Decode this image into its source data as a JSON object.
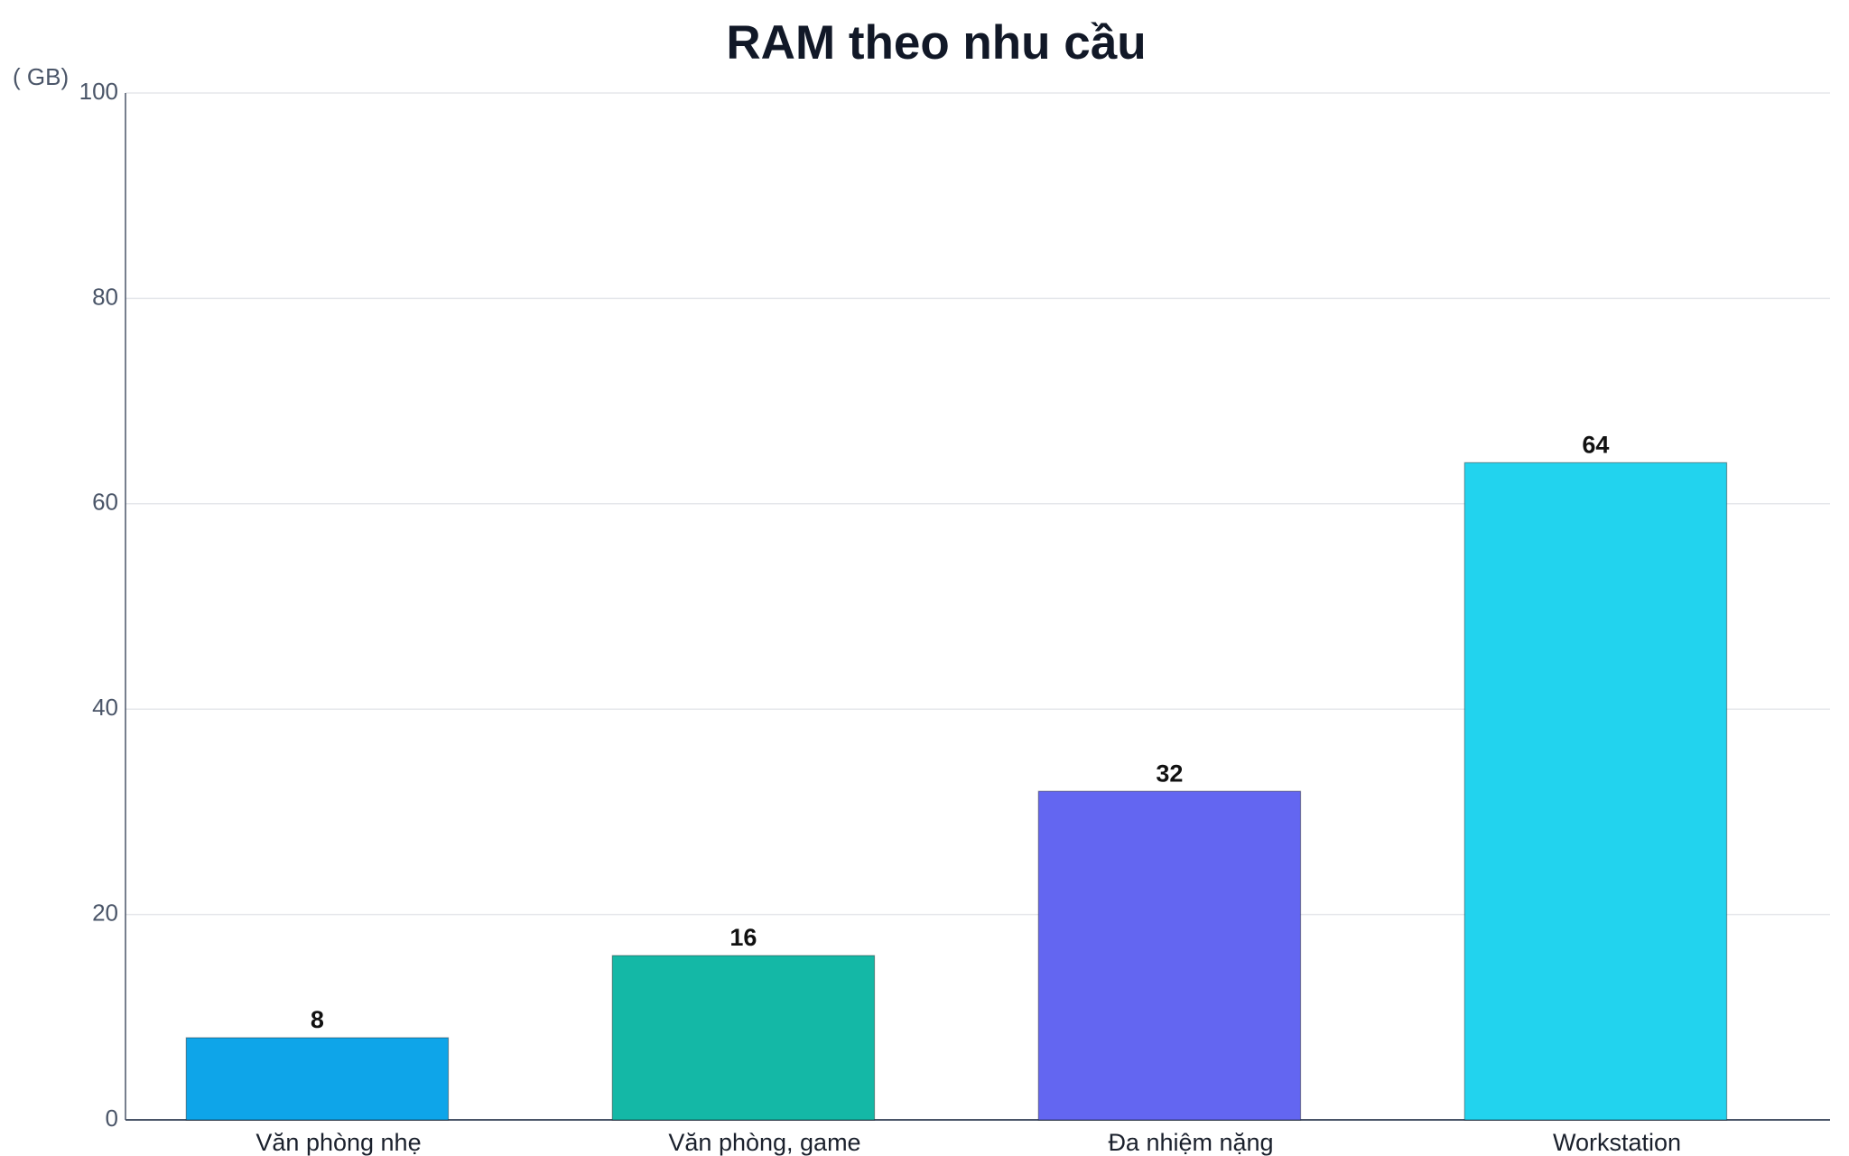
{
  "chart_data": {
    "type": "bar",
    "title": "RAM theo nhu cầu",
    "y_label": "( GB)",
    "categories": [
      "Văn phòng nhẹ",
      "Văn phòng, game",
      "Đa nhiệm nặng",
      "Workstation"
    ],
    "values": [
      8,
      16,
      32,
      64
    ],
    "colors": [
      "#0ea5e9",
      "#14b8a6",
      "#6366f1",
      "#22d3ee"
    ],
    "ylim": [
      0,
      100
    ],
    "yticks": [
      0,
      20,
      40,
      60,
      80,
      100
    ],
    "grid": true
  }
}
